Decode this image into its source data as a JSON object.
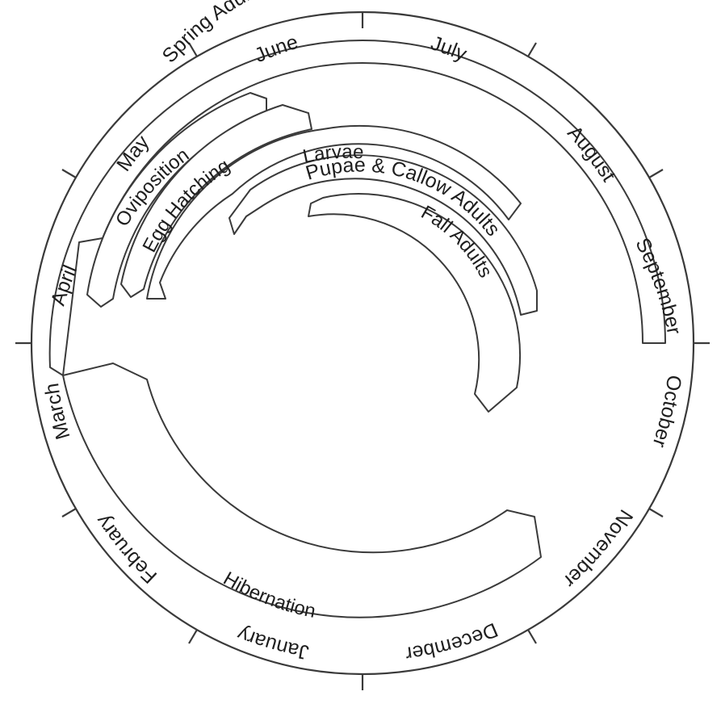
{
  "months": [
    "June",
    "July",
    "August",
    "September",
    "October",
    "November",
    "December",
    "January",
    "February",
    "March",
    "April",
    "May"
  ],
  "stages": {
    "spring_adults": "Spring Adults",
    "oviposition": "Oviposition",
    "egg_hatching": "Egg Hatching",
    "larvae": "Larvae",
    "pupae_callow_adults": "Pupae & Callow Adults",
    "fall_adults": "Fall Adults",
    "hibernation": "Hibernation"
  }
}
